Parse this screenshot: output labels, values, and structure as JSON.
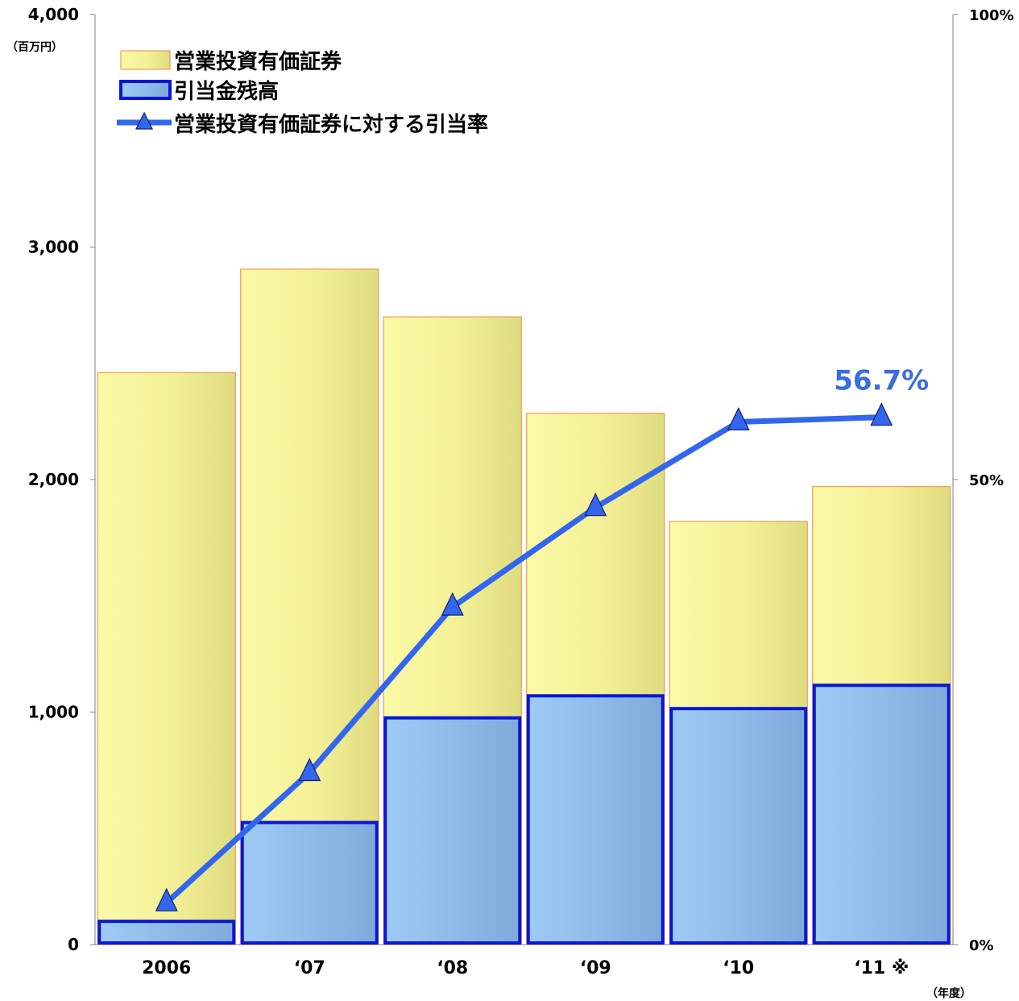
{
  "chart_data": {
    "type": "bar",
    "categories": [
      "2006",
      "‘07",
      "‘08",
      "‘09",
      "‘10",
      "‘11 ※"
    ],
    "left_axis": {
      "unit_label": "（百万円）",
      "ylim": [
        0,
        4000
      ],
      "ticks": [
        "0",
        "1,000",
        "2,000",
        "3,000",
        "4,000"
      ]
    },
    "right_axis": {
      "ylim": [
        0,
        100
      ],
      "ticks": [
        "0%",
        "50%",
        "100%"
      ]
    },
    "x_unit_label": "（年度）",
    "series": [
      {
        "name": "営業投資有価証券",
        "kind": "bar",
        "axis": "left",
        "values": [
          2460,
          2905,
          2700,
          2285,
          1820,
          1970
        ]
      },
      {
        "name": "引当金残高",
        "kind": "bar",
        "axis": "left",
        "values": [
          100,
          525,
          975,
          1070,
          1015,
          1115
        ]
      },
      {
        "name": "営業投資有価証券に対する引当率",
        "kind": "line",
        "axis": "right",
        "values": [
          4.5,
          18.5,
          36.3,
          47.0,
          56.2,
          56.7
        ]
      }
    ],
    "annotations": [
      {
        "text": "56.7%",
        "category_index": 5,
        "series": 2
      }
    ],
    "legend": "top-left",
    "grid": false,
    "colors": {
      "investment_bar": "#f7f5a0",
      "investment_border": "#f08a3c",
      "allowance_bar": "#8fc3ef",
      "allowance_border": "#0a15d6",
      "rate_line": "#3366ee",
      "annotation": "#3a6de0"
    }
  }
}
